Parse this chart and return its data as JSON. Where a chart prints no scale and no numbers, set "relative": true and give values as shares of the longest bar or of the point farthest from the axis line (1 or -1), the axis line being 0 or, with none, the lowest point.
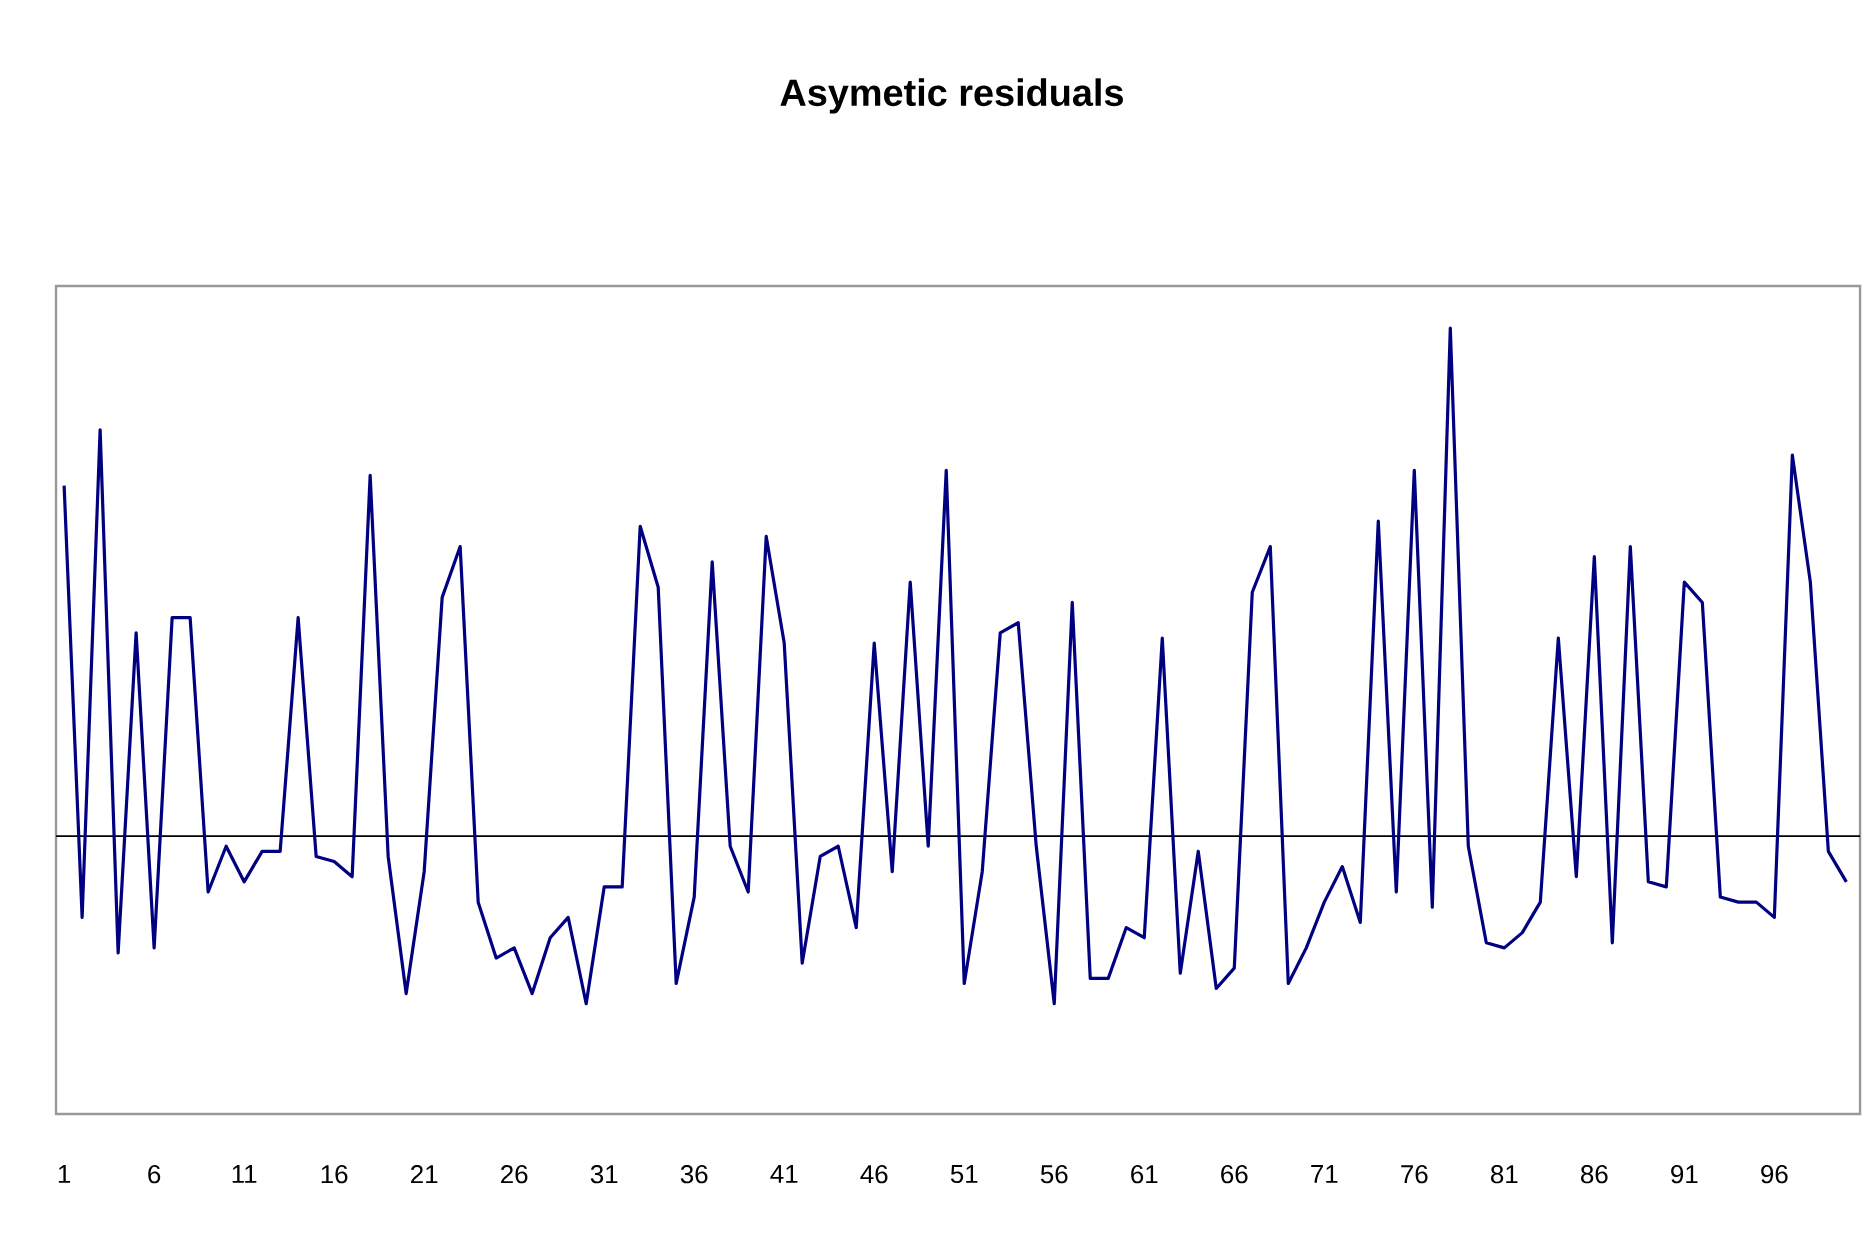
{
  "chart_data": {
    "type": "line",
    "title": "Asymetic residuals",
    "relative": true,
    "color": "#000080",
    "marker": "none",
    "line_style": "solid",
    "grid": false,
    "categories": [
      "1",
      null,
      null,
      null,
      null,
      "6",
      null,
      null,
      null,
      null,
      "11",
      null,
      null,
      null,
      null,
      "16",
      null,
      null,
      null,
      null,
      "21",
      null,
      null,
      null,
      null,
      "26",
      null,
      null,
      null,
      null,
      "31",
      null,
      null,
      null,
      null,
      "36",
      null,
      null,
      null,
      null,
      "41",
      null,
      null,
      null,
      null,
      "46",
      null,
      null,
      null,
      null,
      "51",
      null,
      null,
      null,
      null,
      "56",
      null,
      null,
      null,
      null,
      "61",
      null,
      null,
      null,
      null,
      "66",
      null,
      null,
      null,
      null,
      "71",
      null,
      null,
      null,
      null,
      "76",
      null,
      null,
      null,
      null,
      "81",
      null,
      null,
      null,
      null,
      "86",
      null,
      null,
      null,
      null,
      "91",
      null,
      null,
      null,
      null,
      "96",
      null,
      null,
      null,
      null
    ],
    "values": [
      0.69,
      -0.16,
      0.8,
      -0.23,
      0.4,
      -0.22,
      0.43,
      0.43,
      -0.11,
      -0.02,
      -0.09,
      -0.03,
      -0.03,
      0.43,
      -0.04,
      -0.05,
      -0.08,
      0.71,
      -0.04,
      -0.31,
      -0.07,
      0.47,
      0.57,
      -0.13,
      -0.24,
      -0.22,
      -0.31,
      -0.2,
      -0.16,
      -0.33,
      -0.1,
      -0.1,
      0.61,
      0.49,
      -0.29,
      -0.12,
      0.54,
      -0.02,
      -0.11,
      0.59,
      0.38,
      -0.25,
      -0.04,
      -0.02,
      -0.18,
      0.38,
      -0.07,
      0.5,
      -0.02,
      0.72,
      -0.29,
      -0.07,
      0.4,
      0.42,
      -0.02,
      -0.33,
      0.46,
      -0.28,
      -0.28,
      -0.18,
      -0.2,
      0.39,
      -0.27,
      -0.03,
      -0.3,
      -0.26,
      0.48,
      0.57,
      -0.29,
      -0.22,
      -0.13,
      -0.06,
      -0.17,
      0.62,
      -0.11,
      0.72,
      -0.14,
      1,
      -0.02,
      -0.21,
      -0.22,
      -0.19,
      -0.13,
      0.39,
      -0.08,
      0.55,
      -0.21,
      0.57,
      -0.09,
      -0.1,
      0.5,
      0.46,
      -0.12,
      -0.13,
      -0.13,
      -0.16,
      0.75,
      0.5,
      -0.03,
      -0.09
    ]
  }
}
